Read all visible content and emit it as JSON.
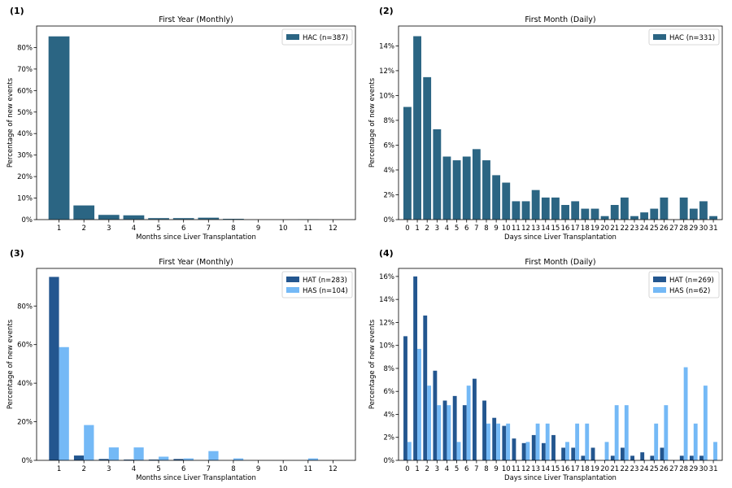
{
  "chart_data": [
    {
      "panel_label": "(1)",
      "type": "bar",
      "title": "First Year (Monthly)",
      "xlabel": "Months since Liver Transplantation",
      "ylabel": "Percentage of new events",
      "categories": [
        "1",
        "2",
        "3",
        "4",
        "5",
        "6",
        "7",
        "8",
        "9",
        "10",
        "11",
        "12"
      ],
      "ylim": [
        0,
        90
      ],
      "yticks": [
        0,
        10,
        20,
        30,
        40,
        50,
        60,
        70,
        80
      ],
      "ytick_labels": [
        "0%",
        "10%",
        "20%",
        "30%",
        "40%",
        "50%",
        "60%",
        "70%",
        "80%"
      ],
      "legend_position": "top-right",
      "series": [
        {
          "name": "HAC (n=387)",
          "color": "#2b6583",
          "values": [
            85.3,
            6.7,
            2.3,
            2.1,
            0.8,
            0.8,
            1.0,
            0.5,
            0.0,
            0.0,
            0.3,
            0.0
          ]
        }
      ]
    },
    {
      "panel_label": "(2)",
      "type": "bar",
      "title": "First Month (Daily)",
      "xlabel": "Days since Liver Transplantation",
      "ylabel": "Percentage of new events",
      "categories": [
        "0",
        "1",
        "2",
        "3",
        "4",
        "5",
        "6",
        "7",
        "8",
        "9",
        "10",
        "11",
        "12",
        "13",
        "14",
        "15",
        "16",
        "17",
        "18",
        "19",
        "20",
        "21",
        "22",
        "23",
        "24",
        "25",
        "26",
        "27",
        "28",
        "29",
        "30",
        "31"
      ],
      "ylim": [
        0,
        15.6
      ],
      "yticks": [
        0,
        2,
        4,
        6,
        8,
        10,
        12,
        14
      ],
      "ytick_labels": [
        "0%",
        "2%",
        "4%",
        "6%",
        "8%",
        "10%",
        "12%",
        "14%"
      ],
      "legend_position": "top-right",
      "series": [
        {
          "name": "HAC (n=331)",
          "color": "#2b6583",
          "values": [
            9.1,
            14.8,
            11.5,
            7.3,
            5.1,
            4.8,
            5.1,
            5.7,
            4.8,
            3.6,
            3.0,
            1.5,
            1.5,
            2.4,
            1.8,
            1.8,
            1.2,
            1.5,
            0.9,
            0.9,
            0.3,
            1.2,
            1.8,
            0.3,
            0.6,
            0.9,
            1.8,
            0.0,
            1.8,
            0.9,
            1.5,
            0.3
          ]
        }
      ]
    },
    {
      "panel_label": "(3)",
      "type": "bar",
      "title": "First Year (Monthly)",
      "xlabel": "Months since Liver Transplantation",
      "ylabel": "Percentage of new events",
      "categories": [
        "1",
        "2",
        "3",
        "4",
        "5",
        "6",
        "7",
        "8",
        "9",
        "10",
        "11",
        "12"
      ],
      "ylim": [
        0,
        99.5
      ],
      "yticks": [
        0,
        20,
        40,
        60,
        80
      ],
      "ytick_labels": [
        "0%",
        "20%",
        "40%",
        "60%",
        "80%"
      ],
      "legend_position": "top-right",
      "series": [
        {
          "name": "HAT (n=283)",
          "color": "#23568f",
          "values": [
            95.1,
            2.5,
            0.7,
            0.4,
            0.4,
            0.7,
            0.0,
            0.0,
            0.0,
            0.0,
            0.0,
            0.0
          ]
        },
        {
          "name": "HAS (n=104)",
          "color": "#74b9f6",
          "values": [
            58.7,
            18.3,
            6.7,
            6.7,
            1.9,
            1.0,
            4.8,
            1.0,
            0.0,
            0.0,
            1.0,
            0.0
          ]
        }
      ]
    },
    {
      "panel_label": "(4)",
      "type": "bar",
      "title": "First Month (Daily)",
      "xlabel": "Days since Liver Transplantation",
      "ylabel": "Percentage of new events",
      "categories": [
        "0",
        "1",
        "2",
        "3",
        "4",
        "5",
        "6",
        "7",
        "8",
        "9",
        "10",
        "11",
        "12",
        "13",
        "14",
        "15",
        "16",
        "17",
        "18",
        "19",
        "20",
        "21",
        "22",
        "23",
        "24",
        "25",
        "26",
        "27",
        "28",
        "29",
        "30",
        "31"
      ],
      "ylim": [
        0,
        16.7
      ],
      "yticks": [
        0,
        2,
        4,
        6,
        8,
        10,
        12,
        14,
        16
      ],
      "ytick_labels": [
        "0%",
        "2%",
        "4%",
        "6%",
        "8%",
        "10%",
        "12%",
        "14%",
        "16%"
      ],
      "legend_position": "top-right",
      "series": [
        {
          "name": "HAT (n=269)",
          "color": "#23568f",
          "values": [
            10.8,
            16.0,
            12.6,
            7.8,
            5.2,
            5.6,
            4.8,
            7.1,
            5.2,
            3.7,
            3.0,
            1.9,
            1.5,
            2.2,
            1.5,
            2.2,
            1.1,
            1.1,
            0.4,
            1.1,
            0.0,
            0.4,
            1.1,
            0.4,
            0.7,
            0.4,
            1.1,
            0.0,
            0.4,
            0.4,
            0.4,
            0.0
          ]
        },
        {
          "name": "HAS (n=62)",
          "color": "#74b9f6",
          "values": [
            1.6,
            9.7,
            6.5,
            4.8,
            4.8,
            1.6,
            6.5,
            0.0,
            3.2,
            3.2,
            3.2,
            0.0,
            1.6,
            3.2,
            3.2,
            0.0,
            1.6,
            3.2,
            3.2,
            0.0,
            1.6,
            4.8,
            4.8,
            0.0,
            0.0,
            3.2,
            4.8,
            0.0,
            8.1,
            3.2,
            6.5,
            1.6
          ]
        }
      ]
    }
  ]
}
